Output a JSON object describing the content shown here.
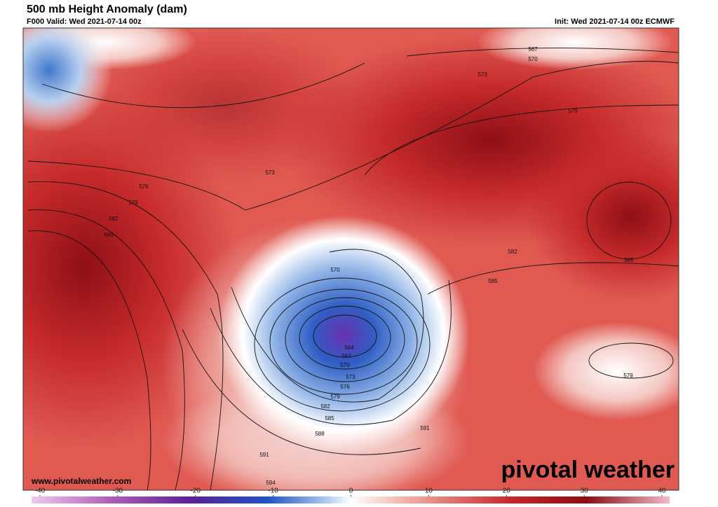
{
  "header": {
    "title": "500 mb Height Anomaly (dam)",
    "valid": "F000 Valid: Wed 2021-07-14 00z",
    "init": "Init: Wed 2021-07-14 00z ECMWF"
  },
  "map": {
    "contour_labels": [
      567,
      570,
      573,
      579,
      573,
      576,
      579,
      582,
      585,
      570,
      582,
      585,
      585,
      564,
      567,
      570,
      573,
      576,
      579,
      582,
      585,
      588,
      591,
      591,
      594,
      579
    ]
  },
  "colorbar": {
    "range": [
      -40,
      40
    ],
    "ticks": [
      -40,
      -30,
      -20,
      -10,
      0,
      10,
      20,
      30,
      40
    ]
  },
  "footer": {
    "website": "www.pivotalweather.com",
    "logo": "pivotal weather"
  }
}
